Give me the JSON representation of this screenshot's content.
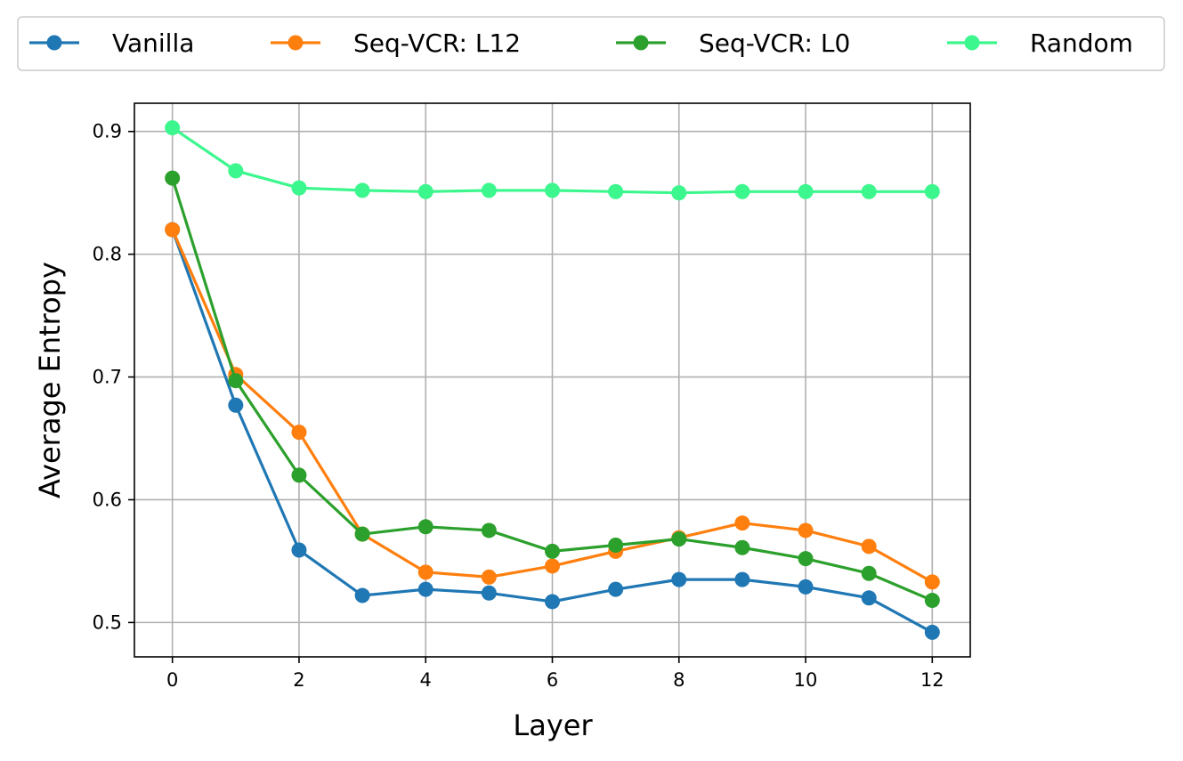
{
  "chart_data": {
    "type": "line",
    "title": "",
    "xlabel": "Layer",
    "ylabel": "Average Entropy",
    "xlim": [
      -0.6,
      12.6
    ],
    "ylim": [
      0.472,
      0.923
    ],
    "grid": true,
    "legend_position": "top",
    "x": [
      0,
      1,
      2,
      3,
      4,
      5,
      6,
      7,
      8,
      9,
      10,
      11,
      12
    ],
    "x_ticks": [
      0,
      2,
      4,
      6,
      8,
      10,
      12
    ],
    "x_tick_labels": [
      "0",
      "2",
      "4",
      "6",
      "8",
      "10",
      "12"
    ],
    "y_ticks": [
      0.5,
      0.6,
      0.7,
      0.8,
      0.9
    ],
    "y_tick_labels": [
      "0.5",
      "0.6",
      "0.7",
      "0.8",
      "0.9"
    ],
    "series": [
      {
        "name": "Vanilla",
        "color": "#1f77b4",
        "values": [
          0.82,
          0.677,
          0.559,
          0.522,
          0.527,
          0.524,
          0.517,
          0.527,
          0.535,
          0.535,
          0.529,
          0.52,
          0.492
        ]
      },
      {
        "name": "Seq-VCR: L12",
        "color": "#ff7f0e",
        "values": [
          0.82,
          0.702,
          0.655,
          0.572,
          0.541,
          0.537,
          0.546,
          0.558,
          0.569,
          0.581,
          0.575,
          0.562,
          0.533
        ]
      },
      {
        "name": "Seq-VCR: L0",
        "color": "#2ca02c",
        "values": [
          0.862,
          0.697,
          0.62,
          0.572,
          0.578,
          0.575,
          0.558,
          0.563,
          0.568,
          0.561,
          0.552,
          0.54,
          0.518
        ]
      },
      {
        "name": "Random",
        "color": "#3cf78d",
        "values": [
          0.903,
          0.868,
          0.854,
          0.852,
          0.851,
          0.852,
          0.852,
          0.851,
          0.85,
          0.851,
          0.851,
          0.851,
          0.851
        ]
      }
    ]
  }
}
